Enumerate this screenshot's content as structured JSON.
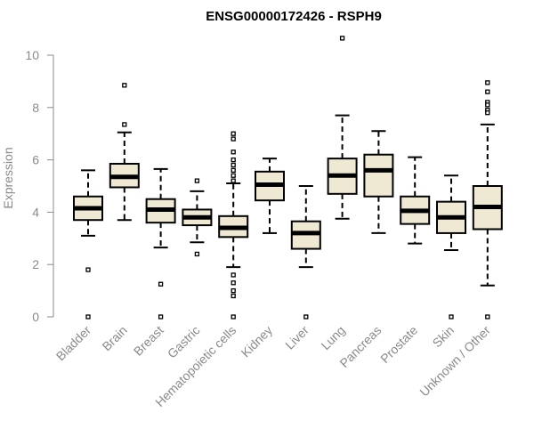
{
  "colors": {
    "box_fill": "#efe8d2",
    "box_stroke": "#000000",
    "axis": "#8a8a8a",
    "text_muted": "#8a8a8a",
    "title": "#000000"
  },
  "chart_data": {
    "type": "boxplot",
    "title": "ENSG00000172426 - RSPH9",
    "xlabel": "",
    "ylabel": "Expression",
    "ylim": [
      0,
      10
    ],
    "yticks": [
      0,
      2,
      4,
      6,
      8,
      10
    ],
    "grid": false,
    "legend": "none",
    "categories": [
      "Bladder",
      "Brain",
      "Breast",
      "Gastric",
      "Hematopoietic cells",
      "Kidney",
      "Liver",
      "Lung",
      "Pancreas",
      "Prostate",
      "Skin",
      "Unknown / Other"
    ],
    "boxes": [
      {
        "category": "Bladder",
        "whisker_low": 3.1,
        "q1": 3.7,
        "median": 4.15,
        "q3": 4.6,
        "whisker_high": 5.6,
        "outliers": [
          1.8,
          0.0
        ]
      },
      {
        "category": "Brain",
        "whisker_low": 3.7,
        "q1": 4.95,
        "median": 5.35,
        "q3": 5.85,
        "whisker_high": 7.05,
        "outliers": [
          7.35,
          8.85
        ]
      },
      {
        "category": "Breast",
        "whisker_low": 2.65,
        "q1": 3.6,
        "median": 4.1,
        "q3": 4.5,
        "whisker_high": 5.65,
        "outliers": [
          1.25,
          0.0
        ]
      },
      {
        "category": "Gastric",
        "whisker_low": 2.85,
        "q1": 3.5,
        "median": 3.8,
        "q3": 4.1,
        "whisker_high": 4.8,
        "outliers": [
          5.2,
          2.4
        ]
      },
      {
        "category": "Hematopoietic cells",
        "whisker_low": 1.9,
        "q1": 3.05,
        "median": 3.4,
        "q3": 3.85,
        "whisker_high": 5.1,
        "outliers": [
          7.0,
          6.8,
          6.3,
          6.0,
          5.8,
          5.6,
          5.4,
          5.2,
          1.6,
          1.3,
          1.0,
          0.8,
          0.0
        ]
      },
      {
        "category": "Kidney",
        "whisker_low": 3.2,
        "q1": 4.45,
        "median": 5.05,
        "q3": 5.55,
        "whisker_high": 6.05,
        "outliers": []
      },
      {
        "category": "Liver",
        "whisker_low": 1.9,
        "q1": 2.6,
        "median": 3.2,
        "q3": 3.65,
        "whisker_high": 5.0,
        "outliers": [
          0.0
        ]
      },
      {
        "category": "Lung",
        "whisker_low": 3.75,
        "q1": 4.7,
        "median": 5.4,
        "q3": 6.05,
        "whisker_high": 7.7,
        "outliers": [
          10.65
        ]
      },
      {
        "category": "Pancreas",
        "whisker_low": 3.2,
        "q1": 4.6,
        "median": 5.6,
        "q3": 6.2,
        "whisker_high": 7.1,
        "outliers": []
      },
      {
        "category": "Prostate",
        "whisker_low": 2.8,
        "q1": 3.55,
        "median": 4.05,
        "q3": 4.6,
        "whisker_high": 6.1,
        "outliers": []
      },
      {
        "category": "Skin",
        "whisker_low": 2.55,
        "q1": 3.2,
        "median": 3.8,
        "q3": 4.4,
        "whisker_high": 5.4,
        "outliers": [
          0.0
        ]
      },
      {
        "category": "Unknown / Other",
        "whisker_low": 1.2,
        "q1": 3.35,
        "median": 4.2,
        "q3": 5.0,
        "whisker_high": 7.35,
        "outliers": [
          8.95,
          8.6,
          8.2,
          8.1,
          7.9,
          7.8,
          0.0
        ]
      }
    ]
  }
}
